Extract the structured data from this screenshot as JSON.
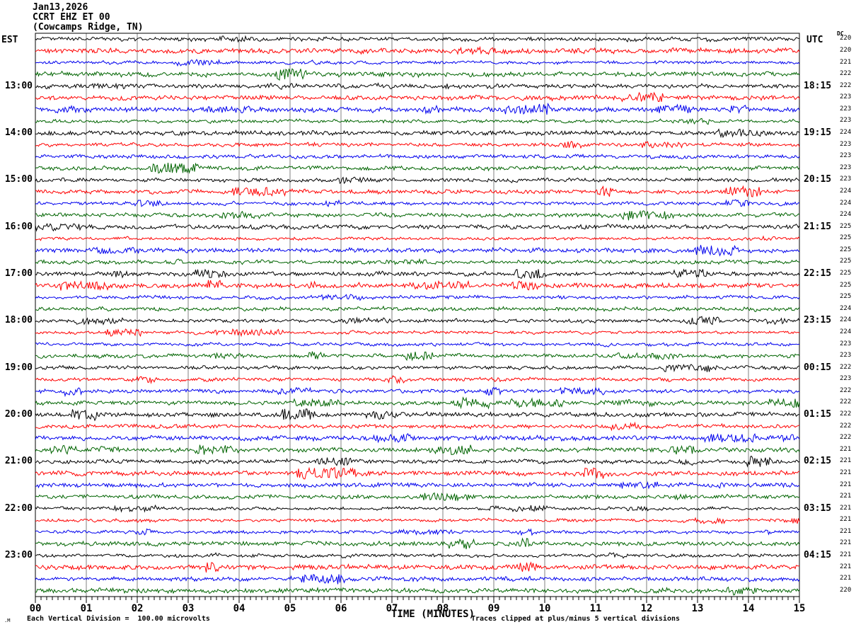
{
  "title": {
    "date": "Jan13,2026",
    "station": "CCRT EHZ ET 00",
    "location": "(Cowcamps Ridge, TN)"
  },
  "headers": {
    "left": "EST",
    "right": "UTC",
    "dc": "DC"
  },
  "x_axis": {
    "title": "TIME (MINUTES)",
    "minute_labels": [
      "00",
      "01",
      "02",
      "03",
      "04",
      "05",
      "06",
      "07",
      "08",
      "09",
      "10",
      "11",
      "12",
      "13",
      "14",
      "15"
    ]
  },
  "footer": {
    "scale_note": "Each Vertical Division =  100.00 microvolts",
    "clip_note": "Traces clipped at plus/minus 5 vertical divisions",
    "watermark": ".M"
  },
  "chart_data": {
    "type": "line",
    "title": "CCRT EHZ ET 00 helicorder, Cowcamps Ridge TN, Jan13 2026",
    "description": "48 seismogram trace rows, 15 minutes of continuous noise per row; left labels = EST row start time, right labels = UTC row end time; colors cycle black/red/blue/green per 15-min segment",
    "rows": 48,
    "minutes_per_row": 15,
    "x_range_minutes": [
      0,
      15
    ],
    "grid": true,
    "grid_color": "#808080",
    "trace_color_cycle": [
      "#000000",
      "#ff0000",
      "#0000ee",
      "#006400"
    ],
    "x_ticks": {
      "major_every_min": 1,
      "minor_per_major": 8
    },
    "left_time_labels": [
      {
        "row": 4,
        "label": "13:00"
      },
      {
        "row": 8,
        "label": "14:00"
      },
      {
        "row": 12,
        "label": "15:00"
      },
      {
        "row": 16,
        "label": "16:00"
      },
      {
        "row": 20,
        "label": "17:00"
      },
      {
        "row": 24,
        "label": "18:00"
      },
      {
        "row": 28,
        "label": "19:00"
      },
      {
        "row": 32,
        "label": "20:00"
      },
      {
        "row": 36,
        "label": "21:00"
      },
      {
        "row": 40,
        "label": "22:00"
      },
      {
        "row": 44,
        "label": "23:00"
      }
    ],
    "right_time_labels": [
      {
        "row": 4,
        "label": "18:15"
      },
      {
        "row": 8,
        "label": "19:15"
      },
      {
        "row": 12,
        "label": "20:15"
      },
      {
        "row": 16,
        "label": "21:15"
      },
      {
        "row": 20,
        "label": "22:15"
      },
      {
        "row": 24,
        "label": "23:15"
      },
      {
        "row": 28,
        "label": "00:15"
      },
      {
        "row": 32,
        "label": "01:15"
      },
      {
        "row": 36,
        "label": "02:15"
      },
      {
        "row": 40,
        "label": "03:15"
      },
      {
        "row": 44,
        "label": "04:15"
      }
    ],
    "dc_values": [
      220,
      220,
      221,
      222,
      222,
      223,
      223,
      223,
      224,
      223,
      223,
      223,
      223,
      224,
      224,
      224,
      225,
      225,
      225,
      225,
      225,
      225,
      225,
      224,
      224,
      224,
      223,
      223,
      222,
      223,
      222,
      222,
      222,
      222,
      222,
      221,
      221,
      221,
      221,
      221,
      221,
      221,
      221,
      221,
      221,
      221,
      221,
      220
    ],
    "amplitude_note": "background noise ~1 vertical division with intermittent bursts; clipped at plus/minus 5 divisions",
    "noise_seed": 20260113
  }
}
